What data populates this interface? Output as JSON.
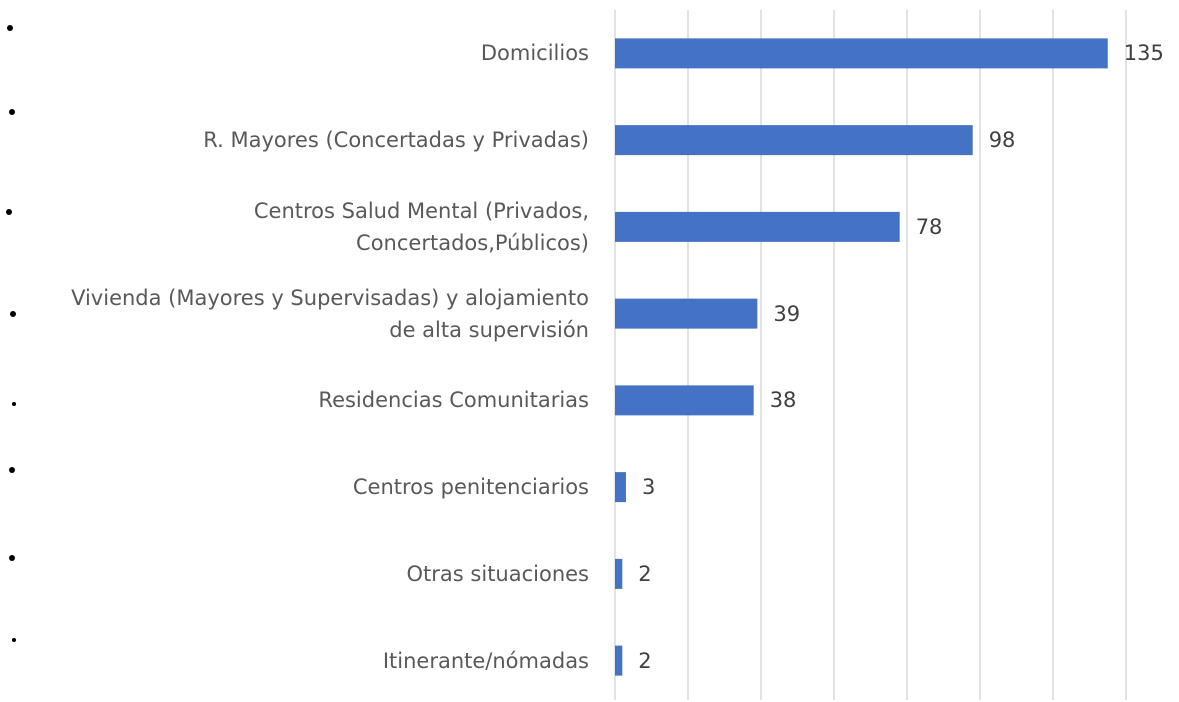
{
  "chart_data": {
    "type": "bar",
    "orientation": "horizontal",
    "categories": [
      "Domicilios",
      "R. Mayores (Concertadas y Privadas)",
      "Centros Salud Mental (Privados,\nConcertados,Públicos)",
      "Vivienda (Mayores y Supervisadas) y alojamiento\nde alta supervisión",
      "Residencias Comunitarias",
      "Centros penitenciarios",
      "Otras situaciones",
      "Itinerante/nómadas"
    ],
    "values": [
      135,
      98,
      78,
      39,
      38,
      3,
      2,
      2
    ],
    "color": "#4472c4",
    "xlim": [
      0,
      140
    ],
    "xticks": [
      0,
      20,
      40,
      60,
      80,
      100,
      120,
      140
    ],
    "grid": true
  }
}
